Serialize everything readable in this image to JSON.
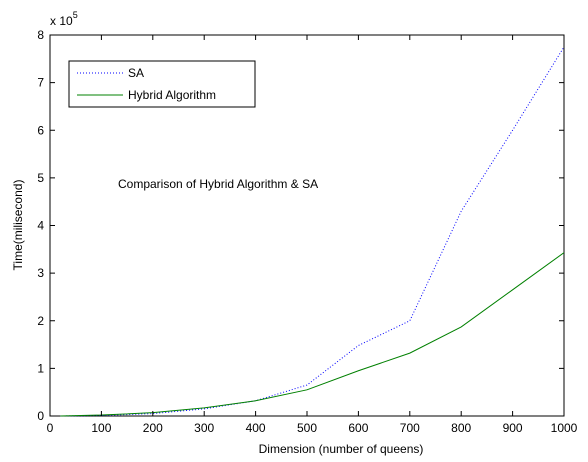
{
  "chart_data": {
    "type": "line",
    "title": "",
    "xlabel": "Dimension (number of queens)",
    "ylabel": "Time(milisecond)",
    "xlim": [
      0,
      1000
    ],
    "ylim": [
      0,
      8
    ],
    "y_multiplier": "x 10",
    "y_multiplier_exponent": "5",
    "xticks": [
      "0",
      "100",
      "200",
      "300",
      "400",
      "500",
      "600",
      "700",
      "800",
      "900",
      "1000"
    ],
    "yticks": [
      "0",
      "1",
      "2",
      "3",
      "4",
      "5",
      "6",
      "7",
      "8"
    ],
    "annotation": "Comparison of Hybrid Algorithm & SA",
    "legend_position": "top-left",
    "grid": false,
    "series": [
      {
        "name": "SA",
        "color": "#0000ff",
        "style": "dotted",
        "x": [
          20,
          100,
          200,
          300,
          400,
          500,
          600,
          700,
          800,
          900,
          1000
        ],
        "y": [
          0.0,
          0.01,
          0.05,
          0.15,
          0.32,
          0.65,
          1.48,
          2.0,
          4.3,
          6.0,
          7.75
        ]
      },
      {
        "name": "Hybrid Algorithm",
        "color": "#008000",
        "style": "solid",
        "x": [
          20,
          100,
          200,
          300,
          400,
          500,
          600,
          700,
          800,
          900,
          1000
        ],
        "y": [
          0.0,
          0.02,
          0.07,
          0.17,
          0.32,
          0.55,
          0.95,
          1.32,
          1.87,
          2.65,
          3.43
        ]
      }
    ]
  }
}
